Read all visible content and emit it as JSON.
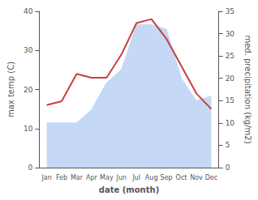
{
  "chart_data": {
    "type": "line",
    "categories": [
      "Jan",
      "Feb",
      "Mar",
      "Apr",
      "May",
      "Jun",
      "Jul",
      "Aug",
      "Sep",
      "Oct",
      "Nov",
      "Dec"
    ],
    "xlabel": "date (month)",
    "ylabel": "max temp (C)",
    "y2label": "med. precipitation (kg/m2)",
    "series": [
      {
        "type": "area",
        "color": "#c5d8f5",
        "axis": "y2",
        "values": [
          10,
          10,
          10,
          13,
          19,
          22,
          32,
          32,
          31,
          20,
          15,
          16
        ]
      },
      {
        "type": "line",
        "color": "#c8403a",
        "values": [
          16,
          17,
          24,
          23,
          23,
          29,
          37,
          38,
          33,
          26,
          19,
          15
        ]
      }
    ],
    "ylim": [
      0,
      40
    ],
    "yticks": [
      0,
      10,
      20,
      30,
      40
    ],
    "y2lim": [
      0,
      35
    ],
    "y2ticks": [
      0,
      5,
      10,
      15,
      20,
      25,
      30,
      35
    ],
    "grid": false
  }
}
